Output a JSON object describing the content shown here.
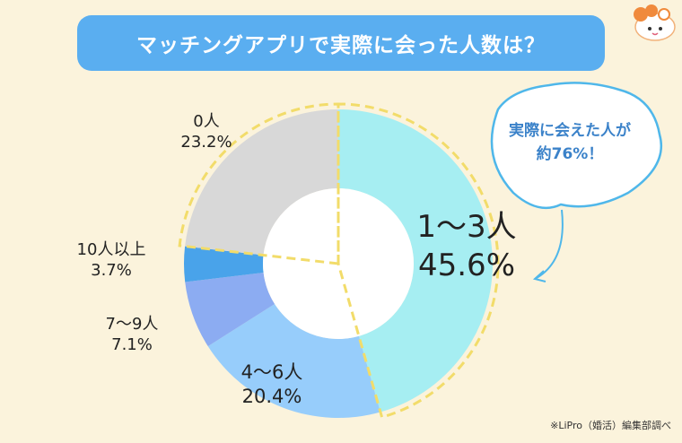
{
  "title": "マッチングアプリで実際に会った人数は？",
  "callout": {
    "line1": "実際に会えた人が",
    "line2": "約76%！"
  },
  "source_note": "※LiPro（婚活）編集部調べ",
  "colors": {
    "background": "#fbf3dc",
    "title_bg": "#5aaef0",
    "dashed_outline": "#f2dc6a",
    "callout_border": "#4fb7ea",
    "callout_text": "#3b82c9"
  },
  "chart_data": {
    "type": "pie",
    "variant": "donut",
    "title": "マッチングアプリで実際に会った人数は？",
    "start_angle": "12 o'clock",
    "direction": "clockwise",
    "slices": [
      {
        "label": "1〜3人",
        "value": 45.6,
        "value_label": "45.6%",
        "color": "#a6eef2",
        "highlight": true
      },
      {
        "label": "4〜6人",
        "value": 20.4,
        "value_label": "20.4%",
        "color": "#97cdfb"
      },
      {
        "label": "7〜9人",
        "value": 7.1,
        "value_label": "7.1%",
        "color": "#8cacf2"
      },
      {
        "label": "10人以上",
        "value": 3.7,
        "value_label": "3.7%",
        "color": "#49a3ea"
      },
      {
        "label": "0人",
        "value": 23.2,
        "value_label": "23.2%",
        "color": "#d8d8d8",
        "highlight": true
      }
    ]
  }
}
